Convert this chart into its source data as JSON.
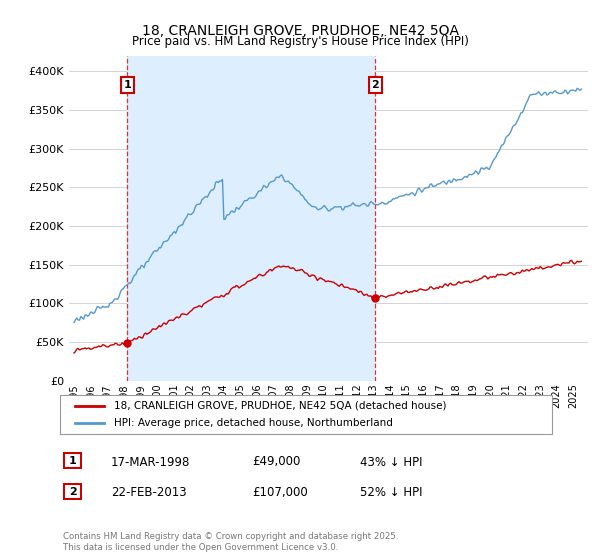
{
  "title": "18, CRANLEIGH GROVE, PRUDHOE, NE42 5QA",
  "subtitle": "Price paid vs. HM Land Registry's House Price Index (HPI)",
  "ylim": [
    0,
    420000
  ],
  "yticks": [
    0,
    50000,
    100000,
    150000,
    200000,
    250000,
    300000,
    350000,
    400000
  ],
  "sale1_date": "17-MAR-1998",
  "sale1_price": 49000,
  "sale1_pct": "43%",
  "sale2_date": "22-FEB-2013",
  "sale2_price": 107000,
  "sale2_pct": "52%",
  "legend_label1": "18, CRANLEIGH GROVE, PRUDHOE, NE42 5QA (detached house)",
  "legend_label2": "HPI: Average price, detached house, Northumberland",
  "footer": "Contains HM Land Registry data © Crown copyright and database right 2025.\nThis data is licensed under the Open Government Licence v3.0.",
  "line_color_red": "#cc0000",
  "line_color_blue": "#5599cc",
  "shade_color": "#ddeeff",
  "vline_color": "#dd3333",
  "background_color": "#ffffff",
  "grid_color": "#cccccc",
  "annotation_box_color": "#cc0000",
  "sale1_x": 1998.21,
  "sale2_x": 2013.12,
  "xlim_min": 1994.7,
  "xlim_max": 2025.9
}
